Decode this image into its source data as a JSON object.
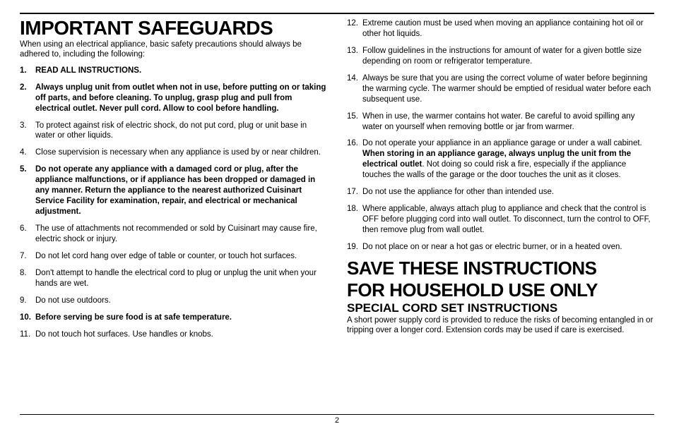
{
  "page_number": "2",
  "colors": {
    "text": "#000000",
    "background": "#ffffff",
    "rule": "#000000"
  },
  "typography": {
    "body_font": "Arial",
    "heading_font": "Arial Black",
    "body_size_pt": 9,
    "h1_size_pt": 21,
    "h2_size_pt": 19,
    "h3_size_pt": 13
  },
  "left": {
    "heading": "IMPORTANT SAFEGUARDS",
    "intro": "When using an electrical appliance, basic safety precautions should always be adhered to, including the following:",
    "items": [
      {
        "n": 1,
        "bold": true,
        "text": "READ ALL INSTRUCTIONS."
      },
      {
        "n": 2,
        "bold": true,
        "text": "Always unplug unit from outlet when not in use, before putting on or taking off parts, and before cleaning. To unplug, grasp plug and pull from electrical outlet. Never pull cord. Allow to cool before handling."
      },
      {
        "n": 3,
        "bold": false,
        "text": "To protect against risk of electric shock, do not put cord, plug or unit base in water or other liquids."
      },
      {
        "n": 4,
        "bold": false,
        "text": "Close supervision is necessary when any appliance is used by or near children."
      },
      {
        "n": 5,
        "bold": true,
        "text": "Do not operate any appliance with a damaged cord or plug, after the appliance malfunctions, or if appliance has been dropped or damaged in any manner. Return the appliance to the nearest authorized Cuisinart Service Facility for examination, repair, and electrical or mechanical adjustment."
      },
      {
        "n": 6,
        "bold": false,
        "text": "The use of attachments not recommended or sold by Cuisinart may cause fire, electric shock or injury."
      },
      {
        "n": 7,
        "bold": false,
        "text": "Do not let cord hang over edge of table or counter, or touch hot surfaces."
      },
      {
        "n": 8,
        "bold": false,
        "text": "Don't attempt to handle the electrical cord to plug or unplug the unit when your hands are wet."
      },
      {
        "n": 9,
        "bold": false,
        "text": "Do not use outdoors."
      },
      {
        "n": 10,
        "bold": true,
        "text": "Before serving be sure food is at safe temperature."
      },
      {
        "n": 11,
        "bold": false,
        "text": "Do not touch hot surfaces. Use handles or knobs."
      }
    ]
  },
  "right": {
    "items": [
      {
        "n": 12,
        "bold": false,
        "text": "Extreme caution must be used when moving an appliance containing hot oil or other hot liquids."
      },
      {
        "n": 13,
        "bold": false,
        "text": "Follow guidelines in the instructions for amount of water for a given bottle size depending on room or refrigerator temperature."
      },
      {
        "n": 14,
        "bold": false,
        "text": "Always be sure that you are using the correct volume of water before beginning the warming cycle.  The warmer should be emptied of residual water before each subsequent use."
      },
      {
        "n": 15,
        "bold": false,
        "text": "When in use, the warmer contains hot water. Be careful to avoid spilling any water on yourself when removing bottle or jar from warmer."
      },
      {
        "n": 16,
        "bold": false,
        "pre": "Do not operate your appliance in an appliance garage or under a wall cabinet. ",
        "bold_inline": "When storing in an appliance garage, always unplug the unit from the electrical outlet",
        "post": ".  Not doing so could risk a fire, especially if the appliance touches the walls of the garage or the door touches the unit as it closes."
      },
      {
        "n": 17,
        "bold": false,
        "text": "Do not use the appliance for other than intended use."
      },
      {
        "n": 18,
        "bold": false,
        "text": "Where applicable, always attach plug to appliance and check that the control is OFF before plugging cord into wall outlet. To disconnect, turn the control to OFF, then remove plug from wall outlet."
      },
      {
        "n": 19,
        "bold": false,
        "text": "Do not place on or near a hot gas or electric burner, or in a heated oven."
      }
    ],
    "save_line1": "SAVE THESE INSTRUCTIONS",
    "save_line2": "FOR HOUSEHOLD USE ONLY",
    "special_heading": "SPECIAL CORD SET INSTRUCTIONS",
    "special_body": "A short power supply cord is provided to reduce the risks of becoming entangled in or tripping over a longer cord. Extension cords may be used if care is exercised."
  }
}
